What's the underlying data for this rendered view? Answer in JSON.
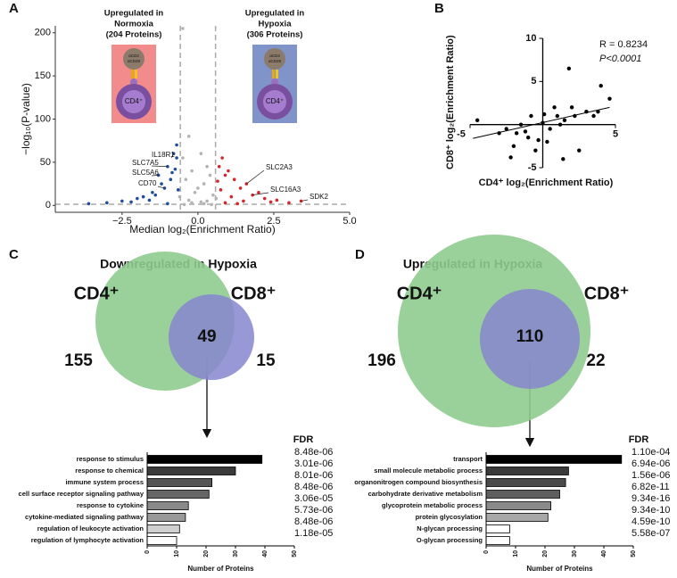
{
  "chart_data": [
    {
      "type": "volcano",
      "panel": "A",
      "x_label": "Median log₂(Enrichment Ratio)",
      "y_label": "−log₁₀(P-value)",
      "xlim": [
        -4.7,
        5
      ],
      "ylim": [
        -8,
        208
      ],
      "xticks": [
        {
          "value": -2.5,
          "label": "−2.5"
        },
        {
          "value": 0,
          "label": "0.0"
        },
        {
          "value": 2.5,
          "label": "2.5"
        },
        {
          "value": 5,
          "label": "5.0"
        }
      ],
      "yticks": [
        0,
        50,
        100,
        150,
        200
      ],
      "vlines": [
        -0.58,
        0.58
      ],
      "hline": 1.3,
      "callouts": [
        [
          "Upregulated in",
          "Normoxia",
          "(204 Proteins)"
        ],
        [
          "Upregulated in",
          "Hypoxia",
          "(306 Proteins)"
        ]
      ],
      "icon_labels": [
        "αCD3",
        "αCD28",
        "CD4⁺"
      ],
      "series": [
        {
          "color": "#b3b3b3",
          "x": [
            -0.5,
            -0.3,
            0.1,
            0.3,
            -0.2,
            0.4,
            -0.4,
            0.2,
            0,
            -0.1,
            0.5,
            -0.6,
            0.6,
            -0.3,
            0.3,
            0.1,
            -0.2,
            0.2,
            -0.45,
            0.45,
            -0.5
          ],
          "values": [
            205,
            80,
            60,
            45,
            40,
            35,
            30,
            25,
            20,
            15,
            12,
            10,
            8,
            6,
            5,
            4,
            3,
            2,
            1,
            1,
            55
          ]
        },
        {
          "color": "#1f4e9c",
          "x": [
            -0.8,
            -1.0,
            -1.3,
            -1.1,
            -0.7,
            -0.9,
            -1.5,
            -2.0,
            -1.2,
            -0.75,
            -1.8,
            -2.5,
            -3.0,
            -3.6,
            -1.4,
            -0.65,
            -0.85,
            -1.6,
            -2.2,
            -0.7,
            -1.0
          ],
          "values": [
            60,
            45,
            35,
            20,
            55,
            30,
            15,
            8,
            25,
            42,
            10,
            5,
            3,
            2,
            12,
            18,
            38,
            6,
            4,
            70,
            2
          ]
        },
        {
          "color": "#d7262b",
          "x": [
            0.7,
            0.9,
            1.2,
            1.6,
            1.8,
            2.2,
            2.6,
            3.4,
            1.0,
            1.4,
            0.8,
            2.0,
            1.1,
            1.5,
            3.0,
            0.65,
            0.75,
            2.4,
            1.3,
            0.9
          ],
          "values": [
            45,
            35,
            30,
            25,
            12,
            8,
            6,
            5,
            40,
            20,
            55,
            15,
            10,
            5,
            3,
            28,
            18,
            4,
            2,
            3
          ]
        }
      ],
      "point_labels": [
        {
          "label": "IL18R1",
          "x": -0.8,
          "y": 60
        },
        {
          "label": "SLC7A5",
          "x": -1.0,
          "y": 45
        },
        {
          "label": "SLC5A6",
          "x": -1.3,
          "y": 35
        },
        {
          "label": "CD70",
          "x": -1.1,
          "y": 20
        },
        {
          "label": "SLC2A3",
          "x": 1.6,
          "y": 25
        },
        {
          "label": "SLC16A3",
          "x": 1.8,
          "y": 12
        },
        {
          "label": "SDK2",
          "x": 3.4,
          "y": 5
        }
      ]
    },
    {
      "type": "scatter",
      "panel": "B",
      "x_label": "CD4⁺ log₂(Enrichment Ratio)",
      "y_label": "CD8⁺ log₂(Enrichment Ratio)",
      "xlim": [
        -5,
        5
      ],
      "ylim": [
        -5,
        10
      ],
      "xticks": [
        -5,
        5
      ],
      "yticks": [
        -5,
        5,
        10
      ],
      "annotations": [
        "R = 0.8234",
        "P<0.0001"
      ],
      "color": "#000000",
      "x": [
        -4.5,
        -3,
        -2.5,
        -2,
        -1.5,
        -1,
        -0.5,
        0,
        0.5,
        1,
        1.5,
        2,
        2.5,
        3,
        3.5,
        4,
        4.6,
        -1.8,
        -0.8,
        0.3,
        1.2,
        2.2,
        -2.2,
        -1.2,
        0.8,
        1.8,
        3.8,
        1.4,
        -0.3,
        0.1
      ],
      "values": [
        0.5,
        -1,
        -0.5,
        -2.5,
        0,
        -1.5,
        -3,
        0.2,
        -0.5,
        1,
        0.5,
        2,
        -3,
        1.5,
        1,
        4.5,
        3,
        -1,
        1,
        -2,
        0,
        1,
        -3.8,
        -0.8,
        2,
        6.5,
        1.5,
        -4,
        -1.8,
        1.2
      ],
      "trendline": {
        "x": [
          -4.8,
          4.6
        ],
        "y": [
          -1.6,
          2.0
        ]
      }
    },
    {
      "type": "venn",
      "panel": "C",
      "title": "Downregulated in Hypoxia",
      "sets": [
        {
          "name": "CD4⁺",
          "color": "#8fcb8f"
        },
        {
          "name": "CD8⁺",
          "color": "#8686cf"
        }
      ],
      "values": [
        155,
        49,
        15
      ]
    },
    {
      "type": "hbar",
      "fdr_title": "FDR",
      "x_label": "Number of Proteins",
      "xlim": [
        0,
        50
      ],
      "xticks": [
        0,
        10,
        20,
        30,
        40,
        50
      ],
      "categories": [
        "response to stimulus",
        "response to chemical",
        "immune system process",
        "cell surface receptor signaling pathway",
        "response to cytokine",
        "cytokine-mediated signaling pathway",
        "regulation of leukocyte activation",
        "regulation of lymphocyte activation"
      ],
      "values": [
        39,
        30,
        22,
        21,
        14,
        13,
        11,
        10
      ],
      "colors": [
        "#000000",
        "#3a3a3a",
        "#555555",
        "#666666",
        "#8a8a8a",
        "#999999",
        "#d0d0d0",
        "#ffffff"
      ],
      "fdr": [
        "8.48e-06",
        "3.01e-06",
        "8.01e-06",
        "8.48e-06",
        "3.06e-05",
        "5.73e-06",
        "8.48e-06",
        "1.18e-05"
      ]
    },
    {
      "type": "venn",
      "panel": "D",
      "title": "Upregulated in Hypoxia",
      "sets": [
        {
          "name": "CD4⁺",
          "color": "#8fcb8f"
        },
        {
          "name": "CD8⁺",
          "color": "#8686cf"
        }
      ],
      "values": [
        196,
        110,
        22
      ]
    },
    {
      "type": "hbar",
      "fdr_title": "FDR",
      "x_label": "Number of Proteins",
      "xlim": [
        0,
        50
      ],
      "xticks": [
        0,
        10,
        20,
        30,
        40,
        50
      ],
      "categories": [
        "transport",
        "small molecule metabolic process",
        "organonitrogen compound biosynthesis",
        "carbohydrate derivative metabolism",
        "glycoprotein metabolic process",
        "protein glycosylation",
        "N-glycan processing",
        "O-glycan processing"
      ],
      "values": [
        46,
        28,
        27,
        25,
        22,
        21,
        8,
        8
      ],
      "colors": [
        "#000000",
        "#3a3a3a",
        "#4a4a4a",
        "#5e5e5e",
        "#8a8a8a",
        "#a8a8a8",
        "#ffffff",
        "#ffffff"
      ],
      "fdr": [
        "1.10e-04",
        "6.94e-06",
        "1.56e-06",
        "6.82e-11",
        "9.34e-16",
        "9.34e-10",
        "4.59e-10",
        "5.58e-07"
      ]
    }
  ]
}
